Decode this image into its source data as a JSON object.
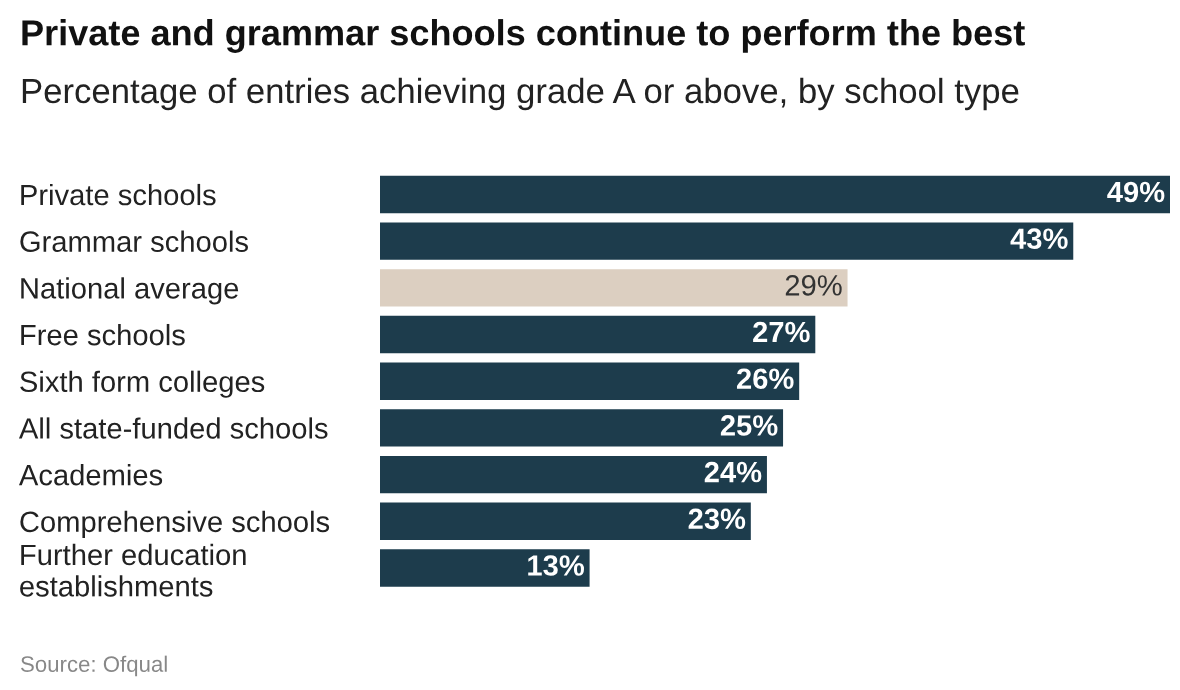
{
  "chart_data": {
    "type": "bar",
    "orientation": "horizontal",
    "title": "Private and grammar schools continue to perform the best",
    "subtitle": "Percentage of entries achieving grade A or above, by school type",
    "categories": [
      "Private schools",
      "Grammar schools",
      "National average",
      "Free schools",
      "Sixth form colleges",
      "All state-funded schools",
      "Academies",
      "Comprehensive schools",
      "Further education\nestablishments"
    ],
    "values": [
      49,
      43,
      29,
      27,
      26,
      25,
      24,
      23,
      13
    ],
    "colors": [
      "#1d3c4c",
      "#1d3c4c",
      "#dccfc1",
      "#1d3c4c",
      "#1d3c4c",
      "#1d3c4c",
      "#1d3c4c",
      "#1d3c4c",
      "#1d3c4c"
    ],
    "value_labels": [
      "49%",
      "43%",
      "29%",
      "27%",
      "26%",
      "25%",
      "24%",
      "23%",
      "13%"
    ],
    "annotations": [
      "Source: Ofqual"
    ],
    "grid": false,
    "legend": false
  }
}
